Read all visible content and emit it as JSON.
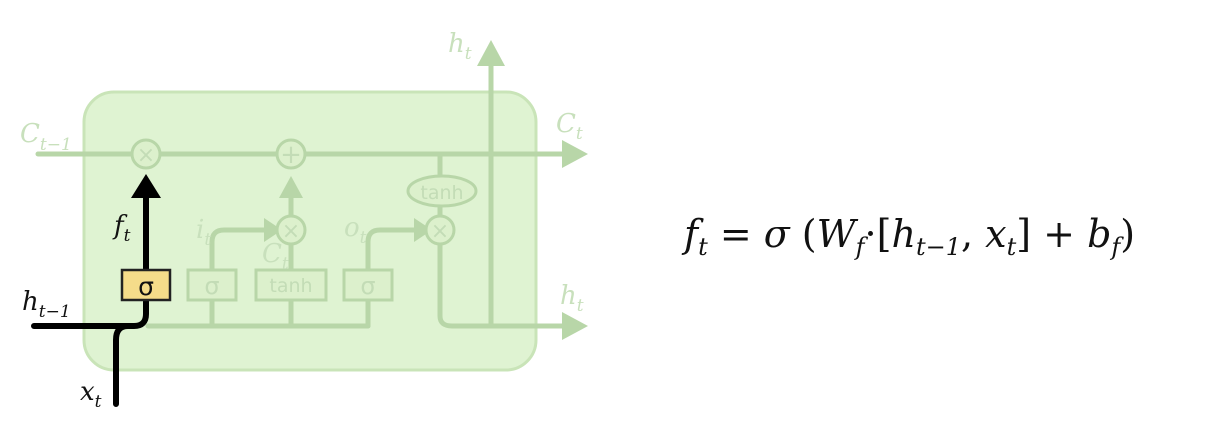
{
  "diagram": {
    "labels": {
      "c_prev": "C",
      "c_prev_sub": "t−1",
      "c_next": "C",
      "c_next_sub": "t",
      "h_top": "h",
      "h_top_sub": "t",
      "h_right": "h",
      "h_right_sub": "t",
      "h_prev": "h",
      "h_prev_sub": "t−1",
      "x_in": "x",
      "x_in_sub": "t",
      "f_gate": "f",
      "f_gate_sub": "t",
      "i_gate": "i",
      "i_gate_sub": "t",
      "c_tilde": "C",
      "c_tilde_sub": "t",
      "o_gate": "o",
      "o_gate_sub": "t"
    },
    "gates": {
      "forget_sigma": "σ",
      "input_sigma": "σ",
      "candidate_tanh": "tanh",
      "output_sigma": "σ",
      "cell_tanh": "tanh"
    },
    "ops": {
      "multiply": "×",
      "add": "+"
    },
    "colors": {
      "cell_fill": "#dff3d2",
      "cell_border": "#c9e4b8",
      "faint": "#b8d6a8",
      "highlight_gate": "#f5dc8a",
      "highlight_path": "#000000"
    }
  },
  "equation": {
    "lhs": "f",
    "lhs_sub": "t",
    "eq": " = ",
    "sigma": "σ",
    "open": " (",
    "W": "W",
    "W_sub": "f",
    "dot": "·[",
    "h": "h",
    "h_sub": "t−1",
    "comma": ", ",
    "x": "x",
    "x_sub": "t",
    "close_bracket": "]  +  ",
    "b": "b",
    "b_sub": "f",
    "close": ")"
  }
}
